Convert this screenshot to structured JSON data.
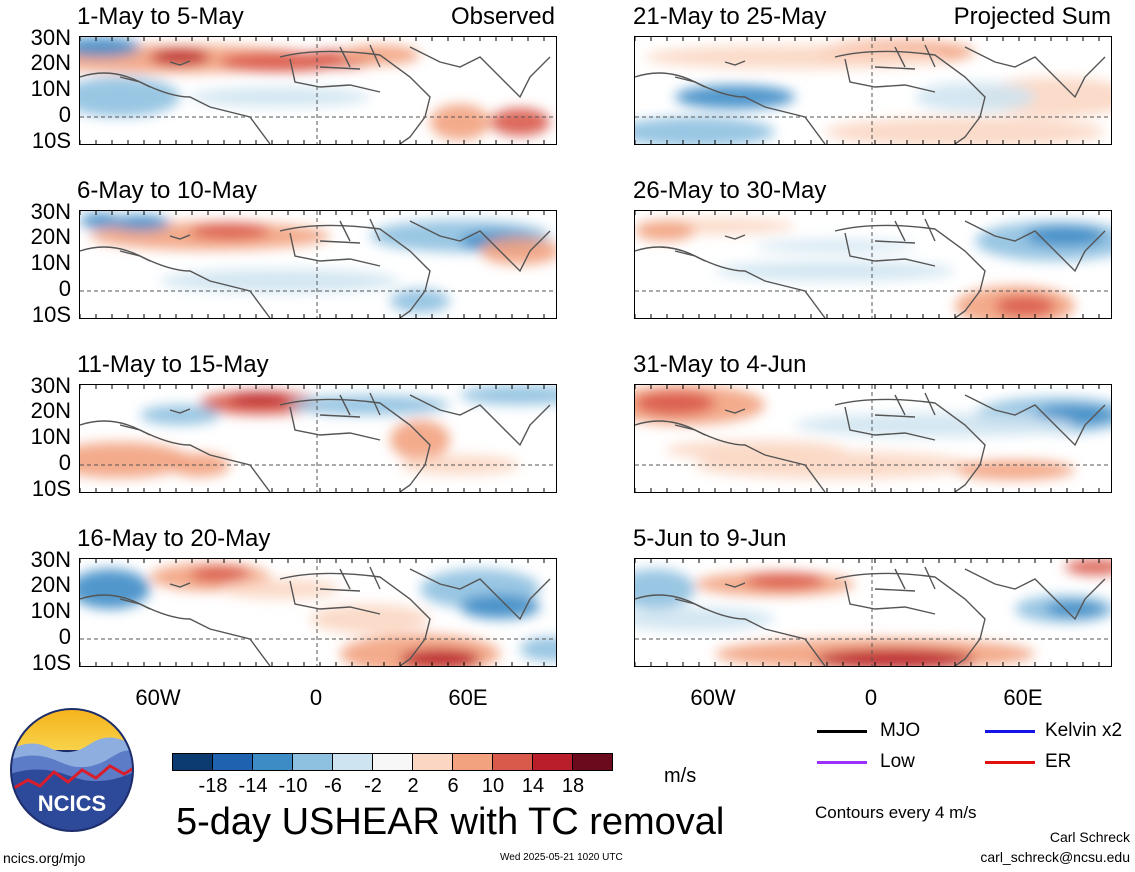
{
  "panels": [
    {
      "title": "1-May to 5-May",
      "tag": "Observed"
    },
    {
      "title": "6-May to 10-May",
      "tag": ""
    },
    {
      "title": "11-May to 15-May",
      "tag": ""
    },
    {
      "title": "16-May to 20-May",
      "tag": ""
    },
    {
      "title": "21-May to 25-May",
      "tag": "Projected Sum"
    },
    {
      "title": "26-May to 30-May",
      "tag": ""
    },
    {
      "title": "31-May to 4-Jun",
      "tag": ""
    },
    {
      "title": "5-Jun to 9-Jun",
      "tag": ""
    }
  ],
  "lat_labels": [
    "30N",
    "20N",
    "10N",
    "0",
    "10S"
  ],
  "lon_labels": [
    "60W",
    "0",
    "60E"
  ],
  "colorbar": {
    "colors": [
      "#0b3b70",
      "#1f63b0",
      "#3d8cc6",
      "#8ec0e0",
      "#cfe4f1",
      "#f7f7f7",
      "#fbd7c3",
      "#f2a27f",
      "#d95a4a",
      "#b91f2b",
      "#6b0a1d"
    ],
    "labels": [
      "-18",
      "-14",
      "-10",
      "-6",
      "-2",
      "2",
      "6",
      "10",
      "14",
      "18"
    ],
    "units": "m/s"
  },
  "main_title": "5-day USHEAR with TC removal",
  "legend": [
    {
      "label": "MJO",
      "color": "#000000"
    },
    {
      "label": "Kelvin x2",
      "color": "#1414e6"
    },
    {
      "label": "Low",
      "color": "#9b30ff"
    },
    {
      "label": "ER",
      "color": "#e01010"
    }
  ],
  "contour_note": "Contours every 4 m/s",
  "logo_text": "NCICS",
  "credits": {
    "url": "ncics.org/mjo",
    "timestamp": "Wed 2025-05-21 1020 UTC",
    "author": "Carl Schreck",
    "email": "carl_schreck@ncsu.edu"
  }
}
